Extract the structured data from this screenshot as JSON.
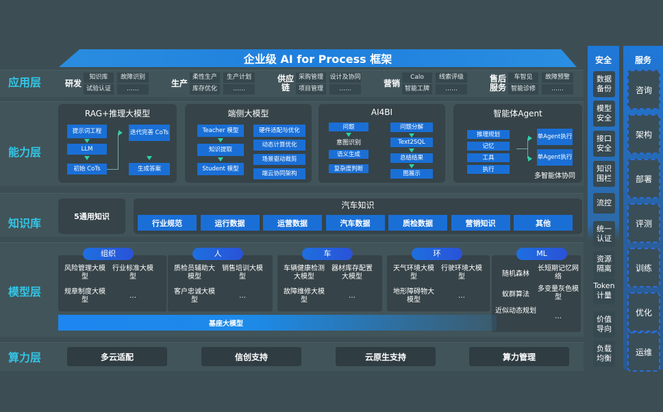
{
  "title": "企业级 AI for Process 框架",
  "layers": {
    "app": "应用层",
    "capability": "能力层",
    "knowledge": "知识库",
    "model": "模型层",
    "compute": "算力层"
  },
  "app_groups": [
    {
      "label": "研发",
      "items": [
        "知识库",
        "故障识别",
        "试验认证",
        "……"
      ]
    },
    {
      "label": "生产",
      "items": [
        "柔性生产",
        "生产计划",
        "库存优化",
        "……"
      ]
    },
    {
      "label": "供应链",
      "items": [
        "采购管理",
        "设计及协同",
        "项目管理",
        "……"
      ]
    },
    {
      "label": "营销",
      "items": [
        "Calo",
        "线索评级",
        "智能工牌",
        "……"
      ]
    },
    {
      "label": "售后服务",
      "items": [
        "车智见",
        "故障预警",
        "智能诊修",
        "……"
      ]
    }
  ],
  "capability": {
    "rag": {
      "title": "RAG+推理大模型",
      "a": "提示词工程",
      "b": "LLM",
      "c": "初始 CoTs",
      "d": "迭代完善 CoTs",
      "e": "生成答案"
    },
    "edge": {
      "title": "端侧大模型",
      "a": "Teacher 模型",
      "b": "知识提取",
      "c": "Student 模型",
      "d": "硬件适配与优化",
      "e": "动态计算优化",
      "f": "场景驱动裁剪",
      "g": "端云协同架构"
    },
    "ai4bi": {
      "title": "AI4BI",
      "a": "问题",
      "b": "意图识别",
      "c": "语义生成",
      "d": "复杂度判断",
      "e": "问题分解",
      "f": "Text2SQL",
      "g": "总结结果",
      "h": "图展示"
    },
    "agent": {
      "title": "智能体Agent",
      "a": "推理规划",
      "b": "记忆",
      "c": "工具",
      "d": "执行",
      "e": "单Agent执行",
      "f": "单Agent执行",
      "g": "多智能体协同"
    }
  },
  "knowledge": {
    "general": "5通用知识",
    "auto_title": "汽车知识",
    "items": [
      "行业规范",
      "运行数据",
      "运营数据",
      "汽车数据",
      "质检数据",
      "营销知识",
      "其他"
    ]
  },
  "models": [
    {
      "label": "组织",
      "items": [
        "风险管理大模型",
        "行业标准大模型",
        "规章制度大模型",
        "…"
      ]
    },
    {
      "label": "人",
      "items": [
        "质检员辅助大模型",
        "销售培训大模型",
        "客户忠诚大模型",
        "…"
      ]
    },
    {
      "label": "车",
      "items": [
        "车辆健康检测大模型",
        "器材库存配置大模型",
        "故障维修大模型",
        "…"
      ]
    },
    {
      "label": "环",
      "items": [
        "天气环境大模型",
        "行驶环境大模型",
        "地形障碍物大模型",
        "…"
      ]
    },
    {
      "label": "ML",
      "items": [
        "随机森林",
        "长短期记忆网络",
        "蚁群算法",
        "多变量灰色模型",
        "近似动态规划",
        "…"
      ]
    }
  ],
  "base_model": "基座大模型",
  "compute": [
    "多云适配",
    "信创支持",
    "云原生支持",
    "算力管理"
  ],
  "security": {
    "title": "安全",
    "items": [
      "数据备份",
      "模型安全",
      "接口安全",
      "知识围栏",
      "流控",
      "统一认证",
      "资源隔离",
      "Token计量",
      "价值导向",
      "负载均衡"
    ]
  },
  "service": {
    "title": "服务",
    "items": [
      "咨询",
      "架构",
      "部署",
      "评测",
      "训练",
      "优化",
      "运维"
    ]
  }
}
